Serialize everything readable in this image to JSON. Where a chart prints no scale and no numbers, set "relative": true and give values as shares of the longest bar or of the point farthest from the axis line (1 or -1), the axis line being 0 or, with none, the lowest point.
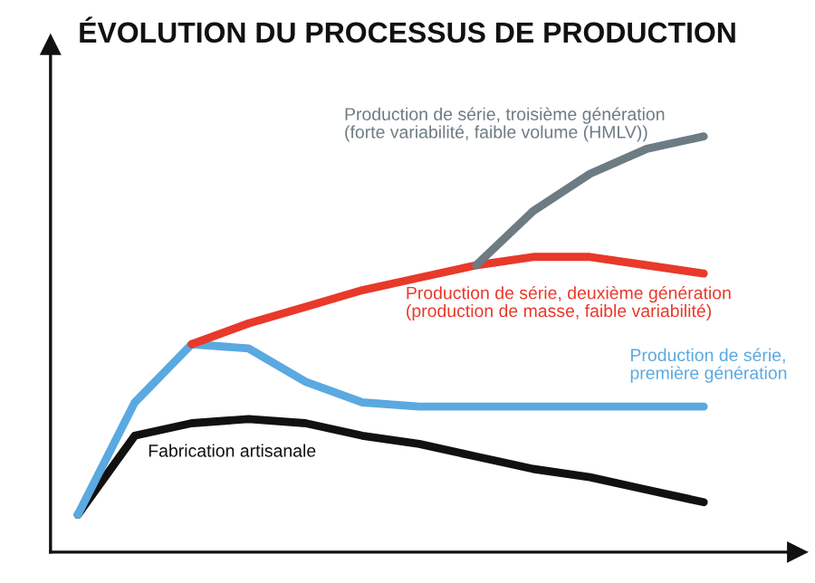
{
  "chart_data": {
    "type": "line",
    "title": "ÉVOLUTION DU PROCESSUS DE PRODUCTION",
    "relative": true,
    "categories": [
      null,
      null,
      null,
      null,
      null,
      null,
      null,
      null,
      null,
      null,
      null,
      null
    ],
    "series": [
      {
        "name": "Fabrication artisanale",
        "color": "#111111",
        "values": [
          0.09,
          0.28,
          0.31,
          0.32,
          0.31,
          0.28,
          0.26,
          0.23,
          0.2,
          0.18,
          0.15,
          0.12
        ]
      },
      {
        "name": "Production de série,\npremière génération",
        "color": "#5aa9e0",
        "values": [
          0.09,
          0.36,
          0.5,
          0.49,
          0.41,
          0.36,
          0.35,
          0.35,
          0.35,
          0.35,
          0.35,
          0.35
        ]
      },
      {
        "name": "Production de série, deuxième génération\n(production de masse, faible variabilité)",
        "color": "#e8392a",
        "values": [
          null,
          null,
          0.5,
          0.55,
          0.59,
          0.63,
          0.66,
          0.69,
          0.71,
          0.71,
          0.69,
          0.67
        ]
      },
      {
        "name": "Production de série, troisième génération\n(forte variabilité, faible volume (HMLV))",
        "color": "#6d7b83",
        "values": [
          null,
          null,
          null,
          null,
          null,
          null,
          null,
          0.69,
          0.82,
          0.91,
          0.97,
          1.0
        ]
      }
    ],
    "legend": false,
    "grid": false
  }
}
